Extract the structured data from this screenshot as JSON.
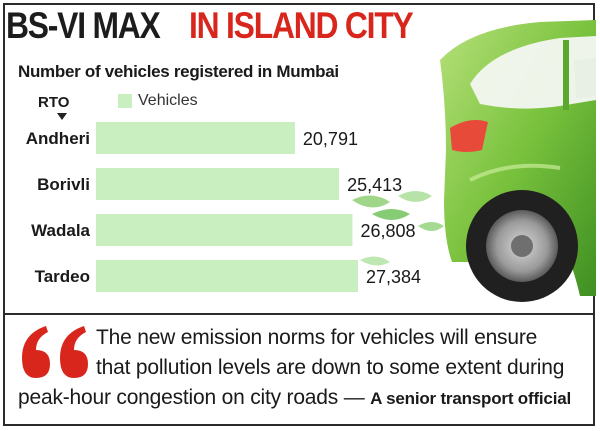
{
  "headline": {
    "part1": "BS-VI MAX",
    "part2": "IN ISLAND CITY"
  },
  "legend": {
    "rto": "RTO"
  },
  "chart_data": {
    "type": "bar",
    "orientation": "horizontal",
    "title": "Number of vehicles registered in Mumbai",
    "categories": [
      "Andheri",
      "Borivli",
      "Wadala",
      "Tardeo"
    ],
    "series": [
      {
        "name": "Vehicles",
        "values": [
          20791,
          25413,
          26808,
          27384
        ]
      }
    ],
    "value_labels": [
      "20,791",
      "25,413",
      "26,808",
      "27,384"
    ],
    "bar_color": "#c9efc1",
    "grid": false,
    "legend_position": "top"
  },
  "quote": {
    "line1": "The new emission norms for vehicles will ensure",
    "line2": "that pollution levels are down to some extent during",
    "line3": "peak-hour congestion on city roads",
    "dash": " — ",
    "attribution": "A senior transport official"
  },
  "colors": {
    "accent": "#d9261c",
    "car_green": "#7cc242"
  }
}
